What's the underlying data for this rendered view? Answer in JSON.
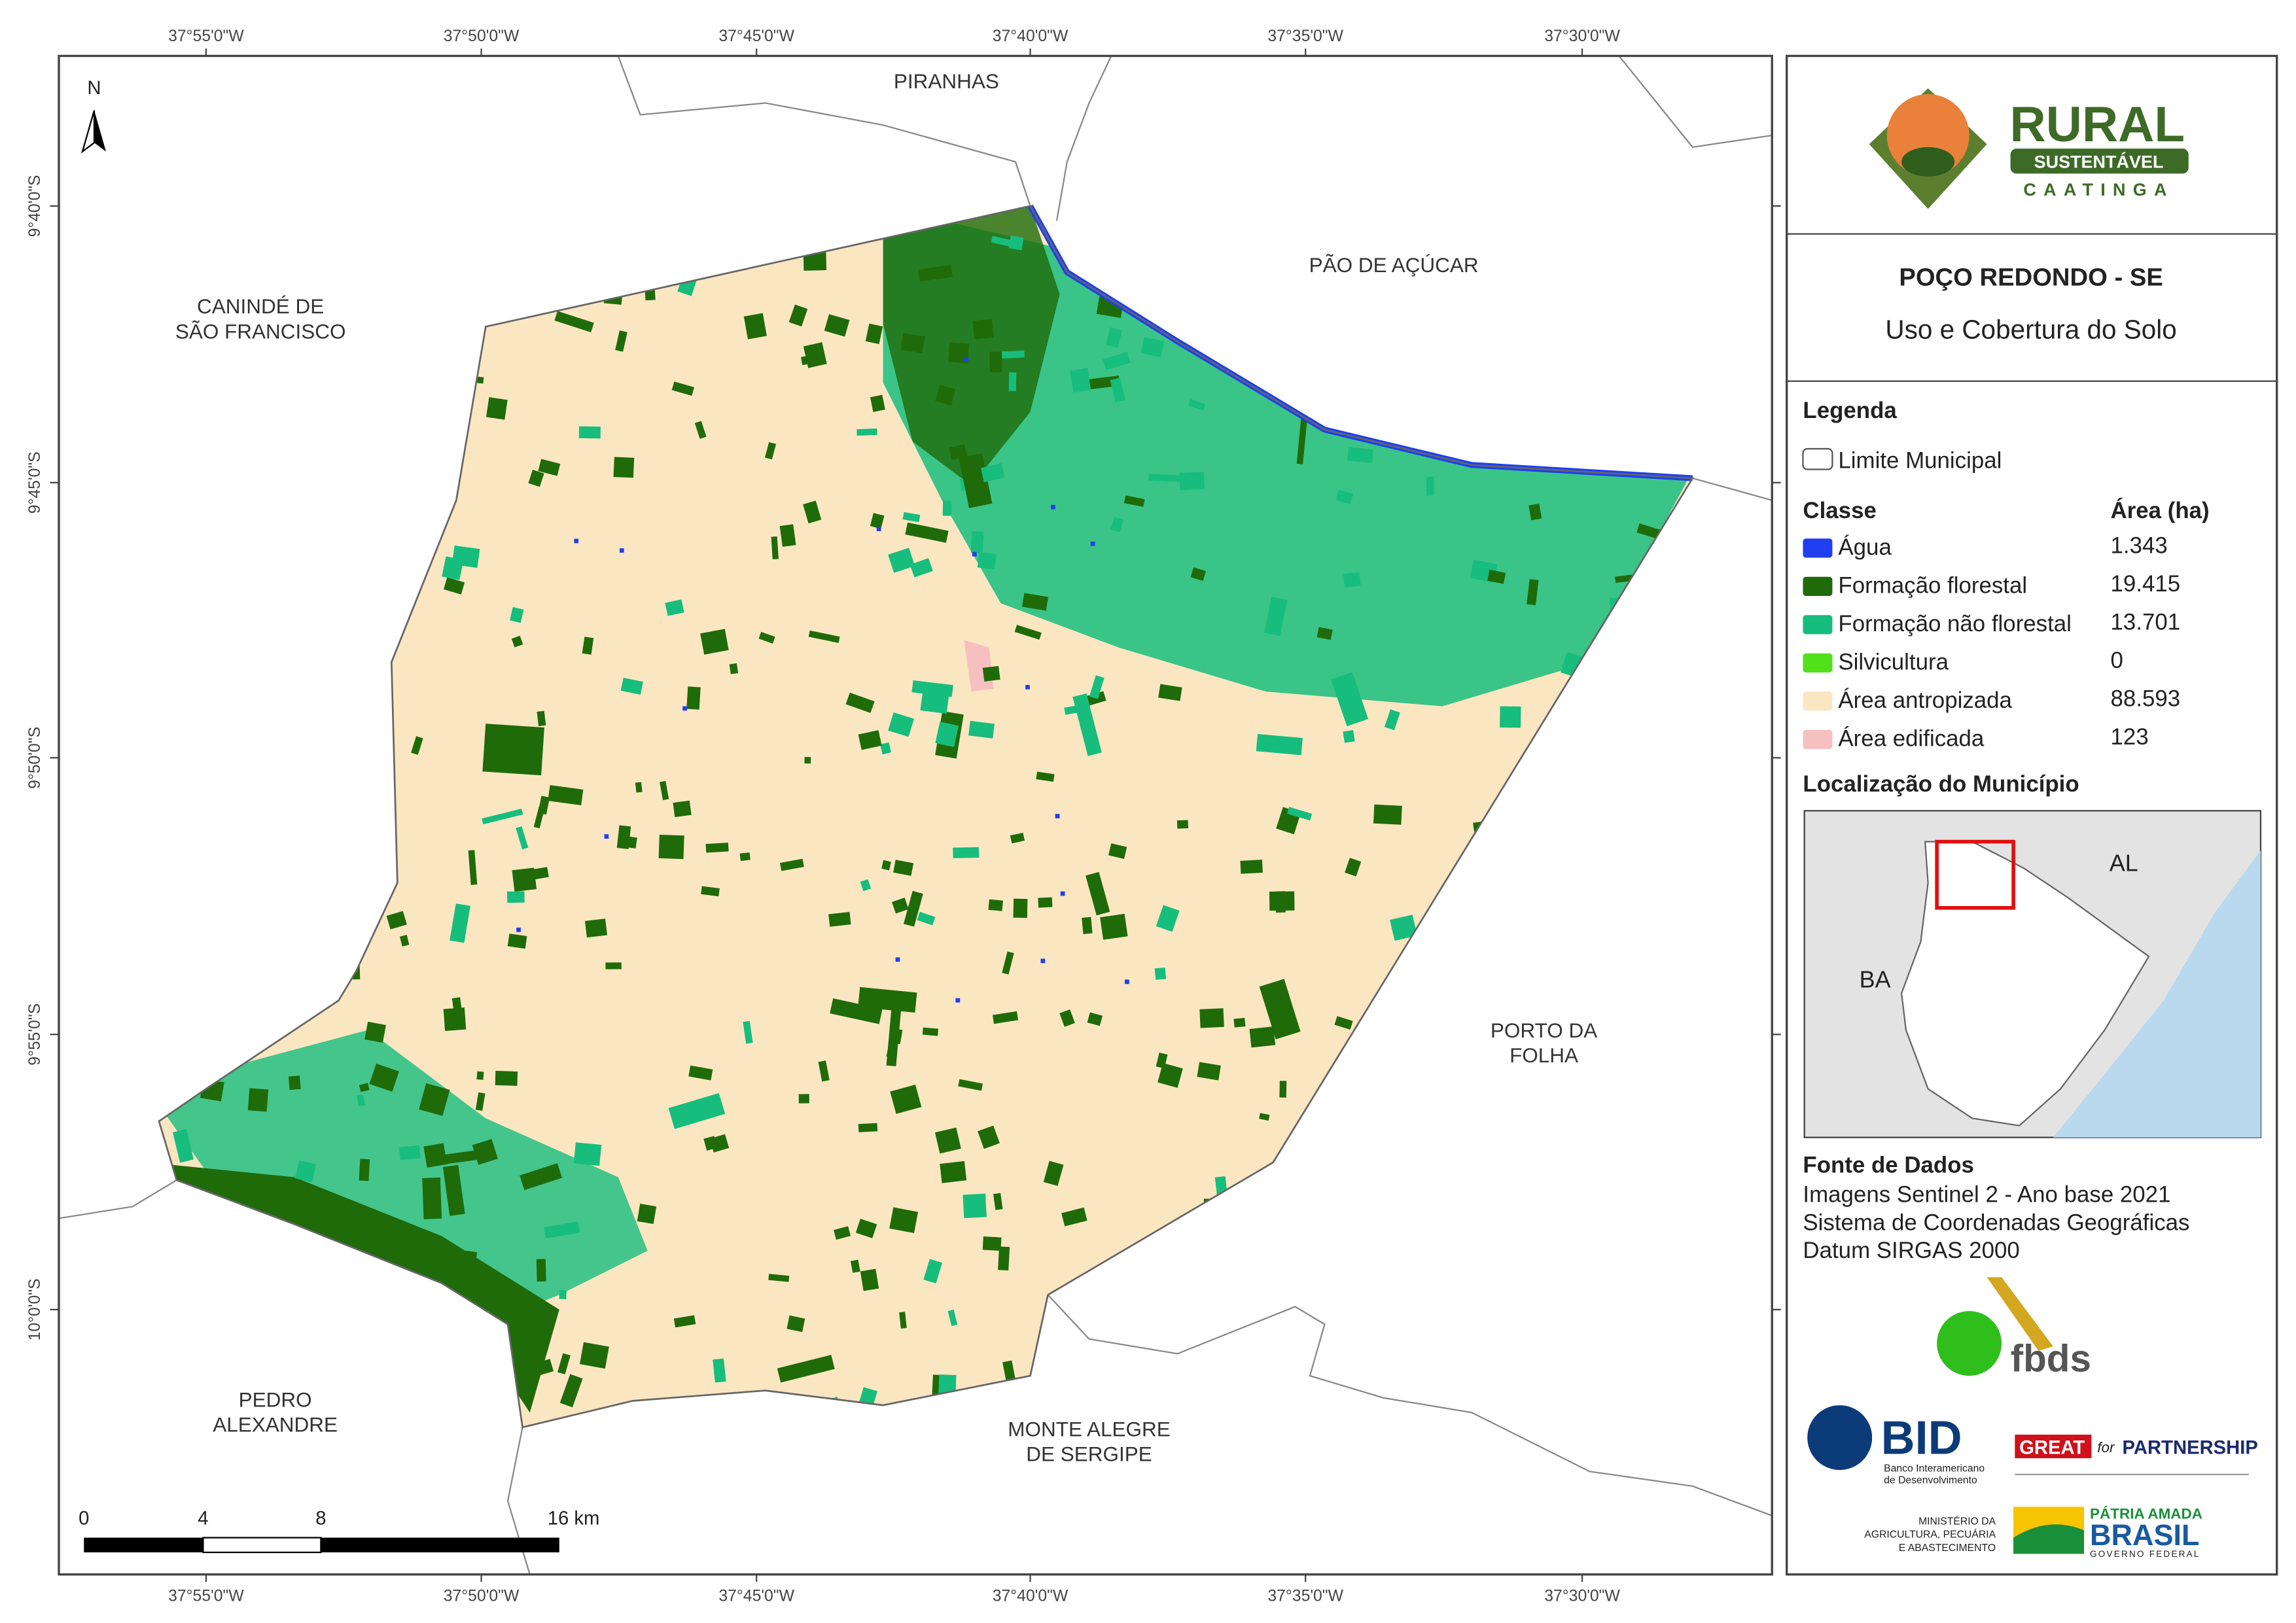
{
  "map": {
    "north_arrow": "N",
    "lon_labels": [
      "37°55'0\"W",
      "37°50'0\"W",
      "37°45'0\"W",
      "37°40'0\"W",
      "37°35'0\"W",
      "37°30'0\"W"
    ],
    "lat_labels": [
      "9°40'0\"S",
      "9°45'0\"S",
      "9°50'0\"S",
      "9°55'0\"S",
      "10°0'0\"S"
    ],
    "neighbors": [
      [
        "PIRANHAS"
      ],
      [
        "PÃO DE AÇÚCAR"
      ],
      [
        "CANINDÉ DE",
        "SÃO FRANCISCO"
      ],
      [
        "PORTO DA",
        "FOLHA"
      ],
      [
        "PEDRO",
        "ALEXANDRE"
      ],
      [
        "MONTE ALEGRE",
        "DE SERGIPE"
      ]
    ],
    "scale_bar": [
      "0",
      "4",
      "8",
      "16 km"
    ]
  },
  "panel": {
    "logo": {
      "title": "RURAL",
      "subtitle": "SUSTENTÁVEL",
      "region": "CAATINGA"
    },
    "title": "POÇO REDONDO - SE",
    "subtitle": "Uso e Cobertura do Solo",
    "legend": {
      "heading": "Legenda",
      "boundary": "Limite Municipal",
      "class_header": "Classe",
      "area_header": "Área (ha)",
      "items": [
        {
          "name": "Água",
          "area": "1.343",
          "color": "#1f3ff0"
        },
        {
          "name": "Formação florestal",
          "area": "19.415",
          "color": "#1f6b0a"
        },
        {
          "name": "Formação não florestal",
          "area": "13.701",
          "color": "#17bd7d"
        },
        {
          "name": "Silvicultura",
          "area": "0",
          "color": "#52e01a"
        },
        {
          "name": "Área antropizada",
          "area": "88.593",
          "color": "#fbe6c2"
        },
        {
          "name": "Área edificada",
          "area": "123",
          "color": "#f6bfc0"
        }
      ]
    },
    "location": {
      "heading": "Localização do Município",
      "labels": [
        "AL",
        "BA"
      ]
    },
    "sources": {
      "heading": "Fonte de Dados",
      "lines": [
        "Imagens Sentinel 2 - Ano base 2021",
        "Sistema de Coordenadas Geográficas",
        "Datum SIRGAS 2000"
      ]
    },
    "partners": {
      "fbds": "fbds",
      "bid": "BID",
      "bid_name": [
        "Banco Interamericano",
        "de Desenvolvimento"
      ],
      "great": "GREAT",
      "great_for": "for",
      "partnership": "PARTNERSHIP",
      "ministry": [
        "MINISTÉRIO DA",
        "AGRICULTURA, PECUÁRIA",
        "E ABASTECIMENTO"
      ],
      "brasil_top": "PÁTRIA AMADA",
      "brasil": "BRASIL",
      "brasil_gov": "GOVERNO FEDERAL"
    }
  }
}
